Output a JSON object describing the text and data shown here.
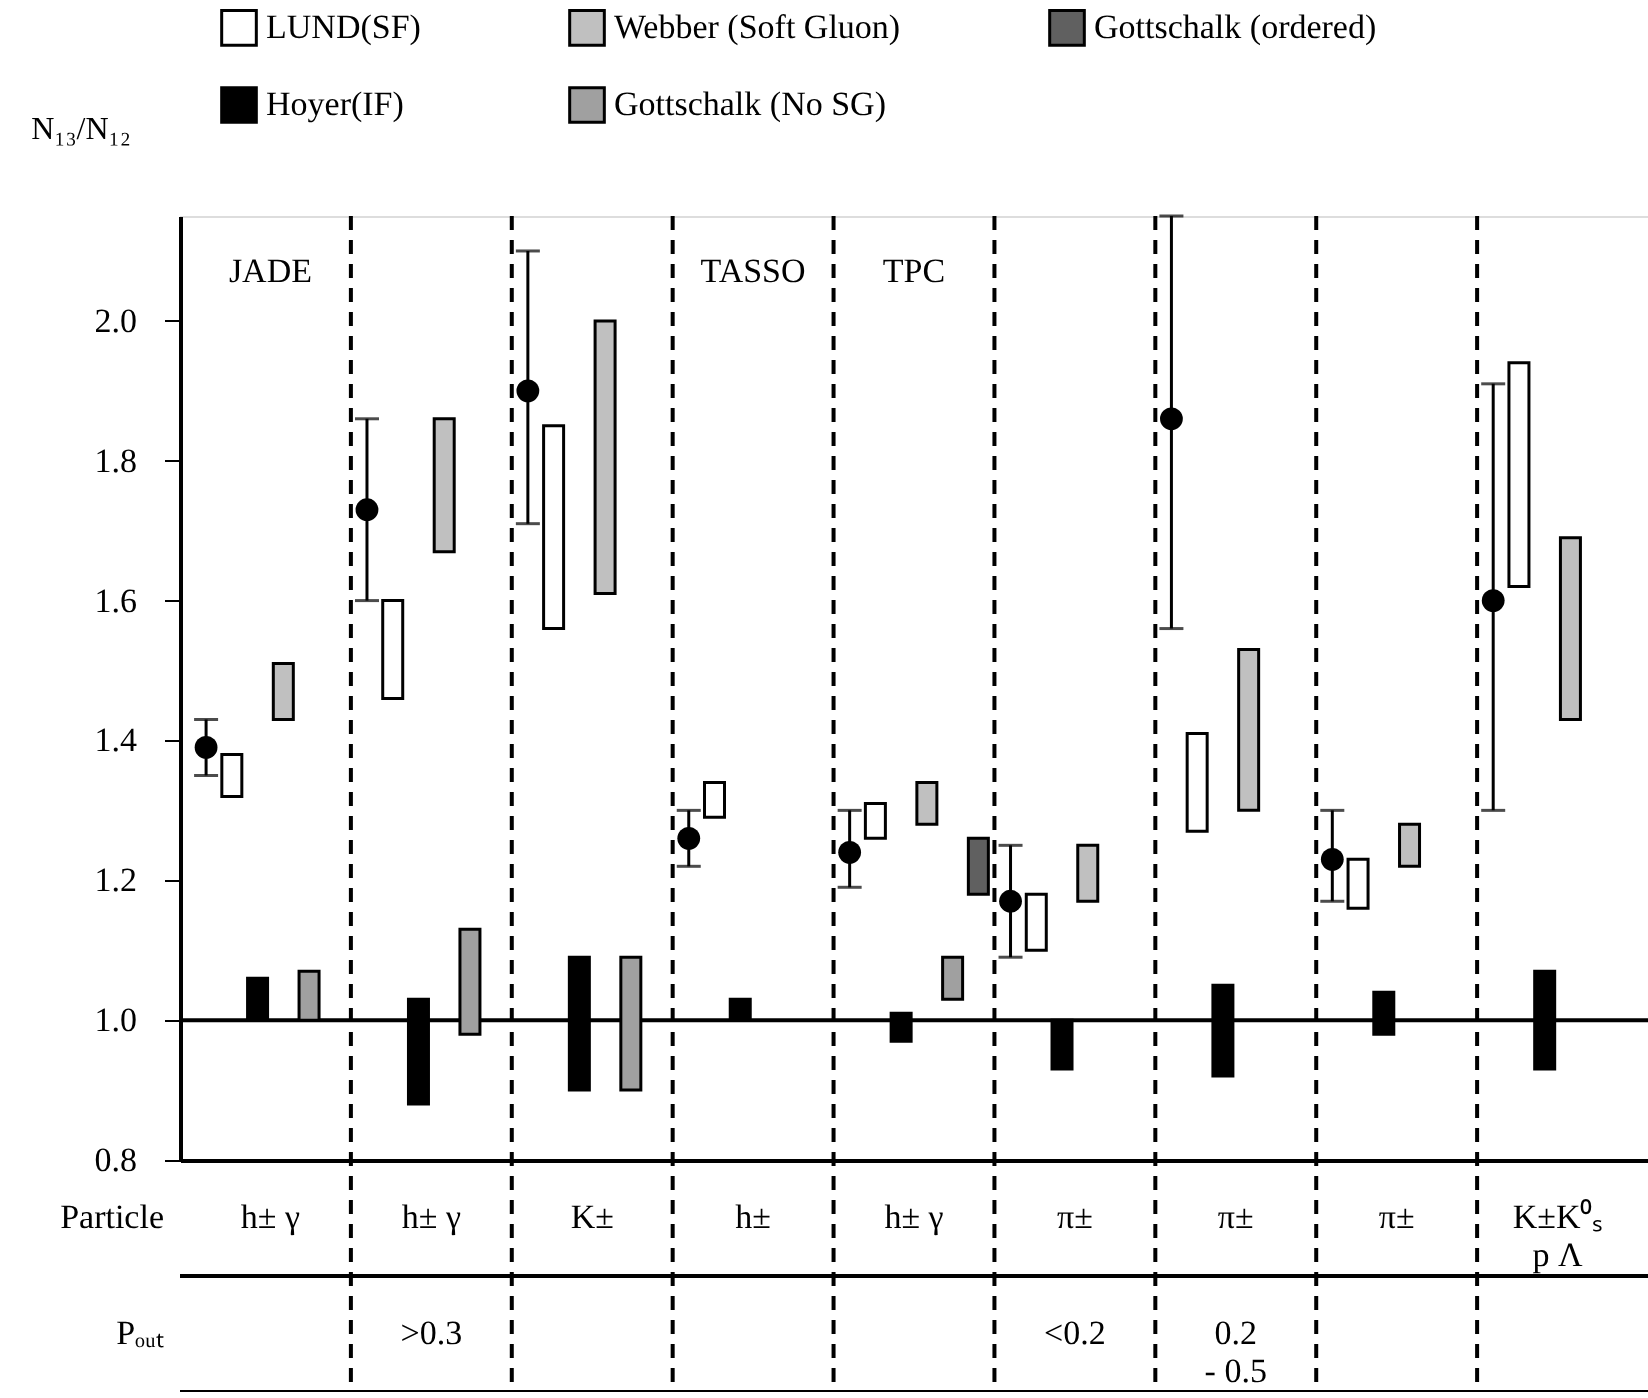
{
  "chart_data": [
    {
      "type": "bar",
      "xlabel": "Particle",
      "ylabel": "N₁₃/N₁₂",
      "categories": [
        "h± γ",
        "h± γ",
        "K±",
        "h±",
        "h± γ",
        "π±",
        "π±",
        "π±",
        "K±K⁰ₛ\np  Λ"
      ],
      "ylim": [
        0.8,
        2.15
      ],
      "yticks": [
        {
          "value": 0.8,
          "label": "0.8"
        },
        {
          "value": 1,
          "label": "1.0"
        },
        {
          "value": 1.2,
          "label": "1.2"
        },
        {
          "value": 1.4,
          "label": "1.4"
        },
        {
          "value": 1.6,
          "label": "1.6"
        },
        {
          "value": 1.8,
          "label": "1.8"
        },
        {
          "value": 2,
          "label": "2.0"
        }
      ],
      "grid": "x",
      "legend": "top",
      "series": [
        {
          "type": "scatter",
          "color": "#000000",
          "marker": "circle",
          "values": [
            1.39,
            1.73,
            1.9,
            1.26,
            1.24,
            1.17,
            1.86,
            1.23,
            1.6
          ],
          "errors": [
            [
              1.35,
              1.43
            ],
            [
              1.6,
              1.86
            ],
            [
              1.71,
              2.1
            ],
            [
              1.22,
              1.3
            ],
            [
              1.19,
              1.3
            ],
            [
              1.09,
              1.25
            ],
            [
              1.56,
              2.15
            ],
            [
              1.17,
              1.3
            ],
            [
              1.3,
              1.91
            ]
          ]
        },
        {
          "name": "LUND(SF)",
          "color": "#ffffff",
          "base": [
            1.32,
            1.46,
            1.56,
            1.29,
            1.26,
            1.1,
            1.27,
            1.16,
            1.62
          ],
          "values": [
            0.06,
            0.14,
            0.29,
            0.05,
            0.05,
            0.08,
            0.14,
            0.07,
            0.32
          ]
        },
        {
          "name": "Hoyer(IF)",
          "color": "#000000",
          "base": [
            1.0,
            0.88,
            0.9,
            1.0,
            0.97,
            0.93,
            0.92,
            0.98,
            0.93
          ],
          "values": [
            0.06,
            0.15,
            0.19,
            0.03,
            0.04,
            0.07,
            0.13,
            0.06,
            0.14
          ]
        },
        {
          "name": "Webber (Soft Gluon)",
          "color": "#c0c0c0",
          "base": [
            1.43,
            1.67,
            1.61,
            null,
            1.28,
            1.17,
            1.3,
            1.22,
            1.43
          ],
          "values": [
            0.08,
            0.19,
            0.39,
            null,
            0.06,
            0.08,
            0.23,
            0.06,
            0.26
          ]
        },
        {
          "name": "Gottschalk (No SG)",
          "color": "#a0a0a0",
          "base": [
            1.0,
            0.98,
            0.9,
            null,
            1.03,
            null,
            null,
            null,
            null
          ],
          "values": [
            0.07,
            0.15,
            0.19,
            null,
            0.06,
            null,
            null,
            null,
            null
          ]
        },
        {
          "name": "Gottschalk (ordered)",
          "color": "#606060",
          "base": [
            null,
            null,
            null,
            null,
            1.18,
            null,
            null,
            null,
            null
          ],
          "values": [
            null,
            null,
            null,
            null,
            0.08,
            null,
            null,
            null,
            null
          ]
        }
      ],
      "ref_lines": [
        {
          "axis": "y",
          "value": 1,
          "line_style": "solid"
        }
      ]
    },
    {
      "type": "other",
      "categories": [
        "JADE",
        null,
        null,
        "TASSO",
        "TPC",
        null,
        null,
        null,
        null
      ]
    },
    {
      "type": "other",
      "ylabel": "Pₒᵤₜ",
      "categories": [
        null,
        ">0.3",
        null,
        null,
        null,
        "<0.2",
        "0.2\n - 0.5",
        null,
        null
      ]
    }
  ]
}
